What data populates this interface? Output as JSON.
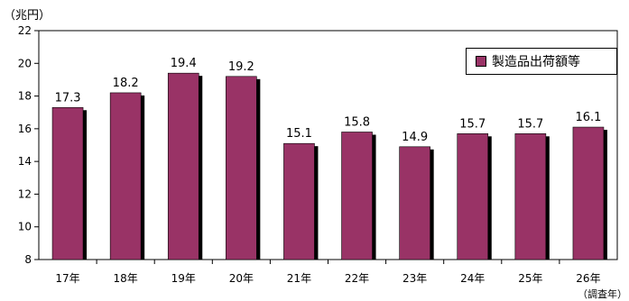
{
  "chart_data": {
    "type": "bar",
    "unit_label": "（兆円）",
    "categories": [
      "17年",
      "18年",
      "19年",
      "20年",
      "21年",
      "22年",
      "23年",
      "24年",
      "25年",
      "26年"
    ],
    "series": [
      {
        "name": "製造品出荷額等",
        "values": [
          17.3,
          18.2,
          19.4,
          19.2,
          15.1,
          15.8,
          14.9,
          15.7,
          15.7,
          16.1
        ],
        "color": "#993366"
      }
    ],
    "data_labels": [
      "17.3",
      "18.2",
      "19.4",
      "19.2",
      "15.1",
      "15.8",
      "14.9",
      "15.7",
      "15.7",
      "16.1"
    ],
    "ylim": [
      8,
      22
    ],
    "yticks": [
      8,
      10,
      12,
      14,
      16,
      18,
      20,
      22
    ],
    "xaxis_note": "（調査年）",
    "legend_position": "top-right",
    "grid": false
  }
}
